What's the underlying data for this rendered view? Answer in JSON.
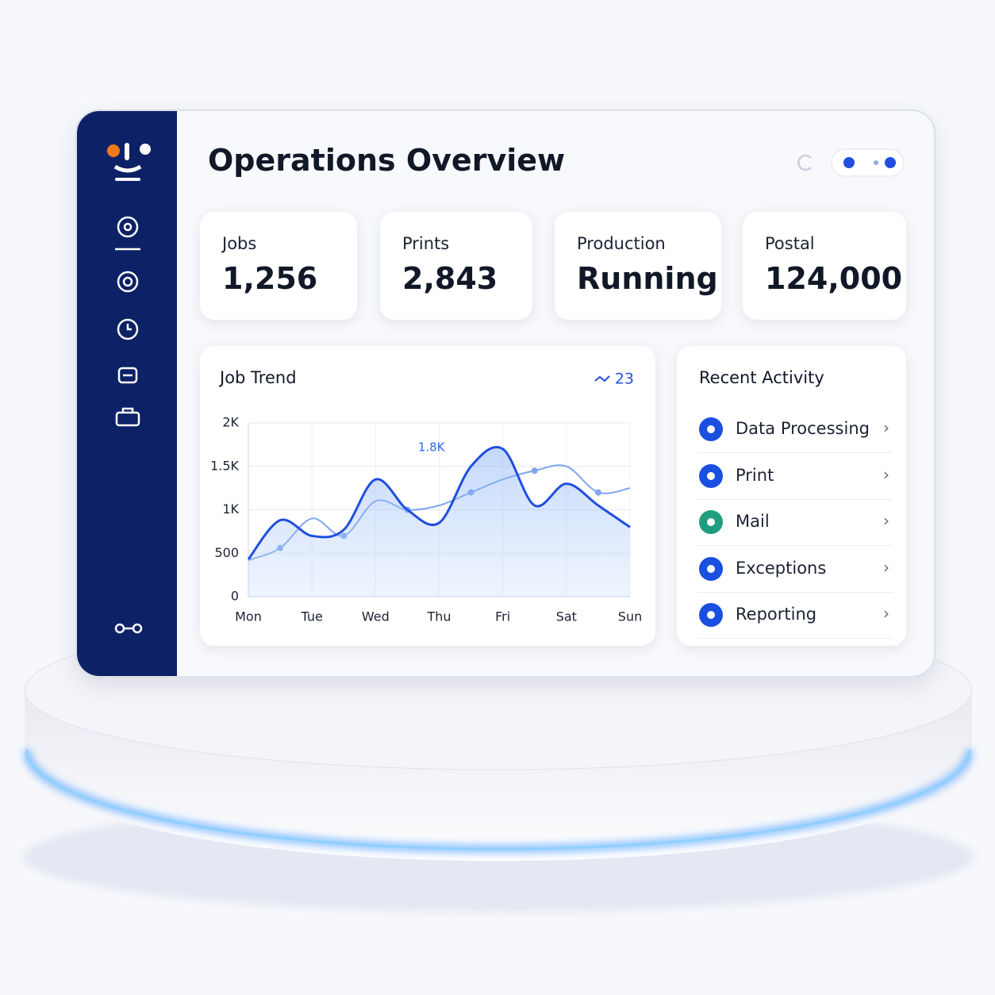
{
  "header": {
    "title": "Operations Overview"
  },
  "stats": [
    {
      "label": "Jobs",
      "value": "1,256"
    },
    {
      "label": "Prints",
      "value": "2,843"
    },
    {
      "label": "Production",
      "value": "Running"
    },
    {
      "label": "Postal",
      "value": "124,000"
    }
  ],
  "chart_data": {
    "type": "line",
    "title": "Job Trend",
    "badge": "23",
    "annotation": "1.8K",
    "categories": [
      "Mon",
      null,
      "Tue",
      null,
      "Wed",
      null,
      "Thu",
      null,
      "Fri",
      null,
      "Sat",
      null,
      "Sun"
    ],
    "ylim": [
      0,
      2000
    ],
    "yticks": [
      0,
      500,
      {
        "value": 1000,
        "label": "1K"
      },
      {
        "value": 1500,
        "label": "1.5K"
      },
      {
        "value": 2000,
        "label": "2K"
      }
    ],
    "grid": true,
    "series": [
      {
        "color": "#1f4fe0",
        "values": [
          430,
          880,
          700,
          770,
          1350,
          1000,
          850,
          1500,
          1700,
          1050,
          1300,
          1050,
          800
        ]
      },
      {
        "color": "#7fa6ee",
        "values": [
          420,
          560,
          900,
          700,
          1100,
          1000,
          1050,
          1200,
          1350,
          1450,
          1500,
          1200,
          1250
        ]
      }
    ]
  },
  "recent_activity": {
    "title": "Recent Activity",
    "items": [
      {
        "name": "Data Processing",
        "color": "#1a4fe0"
      },
      {
        "name": "Print",
        "color": "#1a4fe0"
      },
      {
        "name": "Mail",
        "color": "#1e9e7e"
      },
      {
        "name": "Exceptions",
        "color": "#1a4fe0"
      },
      {
        "name": "Reporting",
        "color": "#1a4fe0"
      }
    ]
  }
}
